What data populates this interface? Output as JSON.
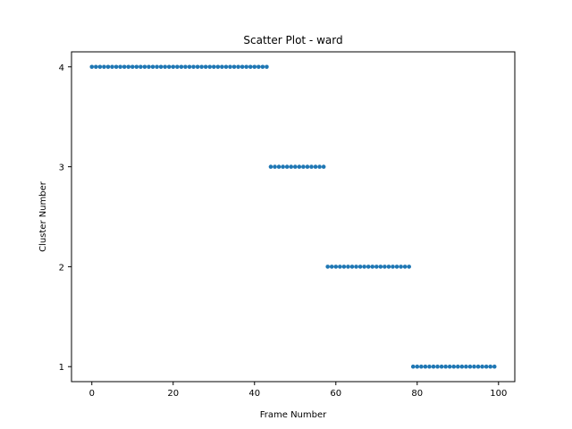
{
  "chart_data": {
    "type": "scatter",
    "title": "Scatter Plot - ward",
    "xlabel": "Frame Number",
    "ylabel": "Cluster Number",
    "xlim": [
      -5,
      104
    ],
    "ylim": [
      0.85,
      4.15
    ],
    "xticks": [
      0,
      20,
      40,
      60,
      80,
      100
    ],
    "yticks": [
      1,
      2,
      3,
      4
    ],
    "grid": false,
    "marker_color": "#1f77b4",
    "series": [
      {
        "segments": [
          {
            "x_start": 0,
            "x_end": 43,
            "y": 4
          },
          {
            "x_start": 44,
            "x_end": 57,
            "y": 3
          },
          {
            "x_start": 58,
            "x_end": 78,
            "y": 2
          },
          {
            "x_start": 79,
            "x_end": 99,
            "y": 1
          }
        ]
      }
    ]
  }
}
